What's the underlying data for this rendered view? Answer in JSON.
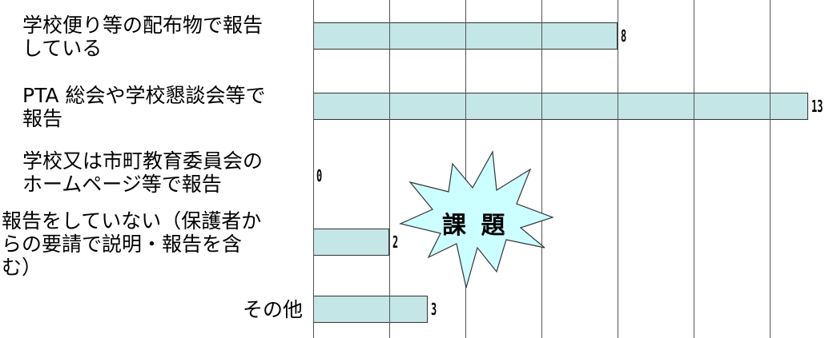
{
  "chart_data": {
    "type": "bar",
    "orientation": "horizontal",
    "categories": [
      "学校便り等の配布物で報告\nしている",
      "PTA 総会や学校懇談会等で\n報告",
      "学校又は市町教育委員会の\nホームページ等で報告",
      "報告をしていない（保護者か\nらの要請で説明・報告を含\nむ）",
      "その他"
    ],
    "values": [
      8,
      13,
      0,
      2,
      3
    ],
    "color": "#c4e6e6",
    "xlim": [
      0,
      13.7
    ],
    "xticks": [
      0,
      2,
      4,
      6,
      8,
      10,
      12
    ],
    "grid": true,
    "annotation": "課 題"
  }
}
